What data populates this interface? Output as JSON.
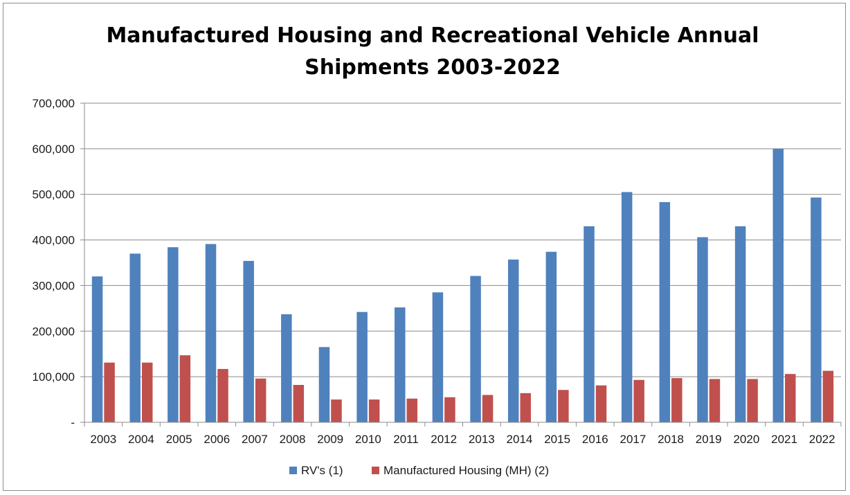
{
  "chart_data": {
    "type": "bar",
    "title_line1": "Manufactured Housing and Recreational Vehicle Annual",
    "title_line2": "Shipments 2003-2022",
    "xlabel": "",
    "ylabel": "",
    "ylim": [
      0,
      700000
    ],
    "yticks": [
      0,
      100000,
      200000,
      300000,
      400000,
      500000,
      600000,
      700000
    ],
    "ytick_labels": [
      "-",
      "100,000",
      "200,000",
      "300,000",
      "400,000",
      "500,000",
      "600,000",
      "700,000"
    ],
    "grid": true,
    "legend_position": "bottom",
    "categories": [
      "2003",
      "2004",
      "2005",
      "2006",
      "2007",
      "2008",
      "2009",
      "2010",
      "2011",
      "2012",
      "2013",
      "2014",
      "2015",
      "2016",
      "2017",
      "2018",
      "2019",
      "2020",
      "2021",
      "2022"
    ],
    "series": [
      {
        "name": "RV's (1)",
        "color": "#4f81bd",
        "values": [
          320000,
          370000,
          384000,
          391000,
          354000,
          237000,
          165000,
          242000,
          252000,
          285000,
          321000,
          357000,
          374000,
          430000,
          505000,
          483000,
          406000,
          430000,
          600000,
          493000
        ]
      },
      {
        "name": "Manufactured Housing (MH) (2)",
        "color": "#c0504d",
        "values": [
          131000,
          131000,
          147000,
          117000,
          96000,
          82000,
          50000,
          50000,
          52000,
          55000,
          60000,
          64000,
          71000,
          81000,
          93000,
          97000,
          95000,
          95000,
          106000,
          113000
        ]
      }
    ]
  }
}
